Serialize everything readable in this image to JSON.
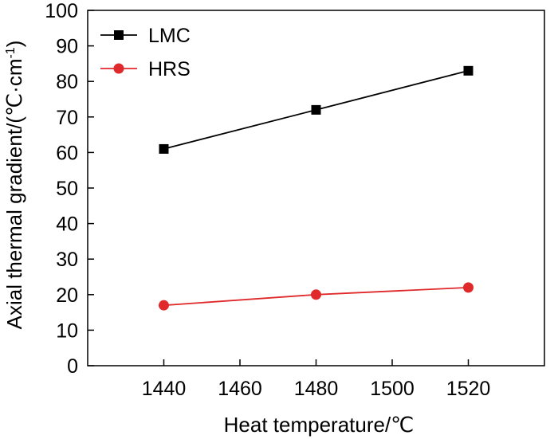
{
  "chart_data": {
    "type": "line",
    "title": "",
    "xlabel": "Heat temperature/℃",
    "ylabel": "Axial thermal gradient/(℃·cm",
    "ylabel_sup": "-1",
    "ylabel_close": ")",
    "x": [
      1440,
      1480,
      1520
    ],
    "xlim": [
      1420,
      1540
    ],
    "ylim": [
      0,
      100
    ],
    "xticks": [
      1440,
      1460,
      1480,
      1500,
      1520
    ],
    "yticks": [
      0,
      10,
      20,
      30,
      40,
      50,
      60,
      70,
      80,
      90,
      100
    ],
    "grid": false,
    "legend_position": "top-left",
    "series": [
      {
        "name": "LMC",
        "values": [
          61,
          72,
          83
        ],
        "color": "#000000",
        "marker": "square"
      },
      {
        "name": "HRS",
        "values": [
          17,
          20,
          22
        ],
        "color": "#e0292b",
        "marker": "circle"
      }
    ]
  }
}
